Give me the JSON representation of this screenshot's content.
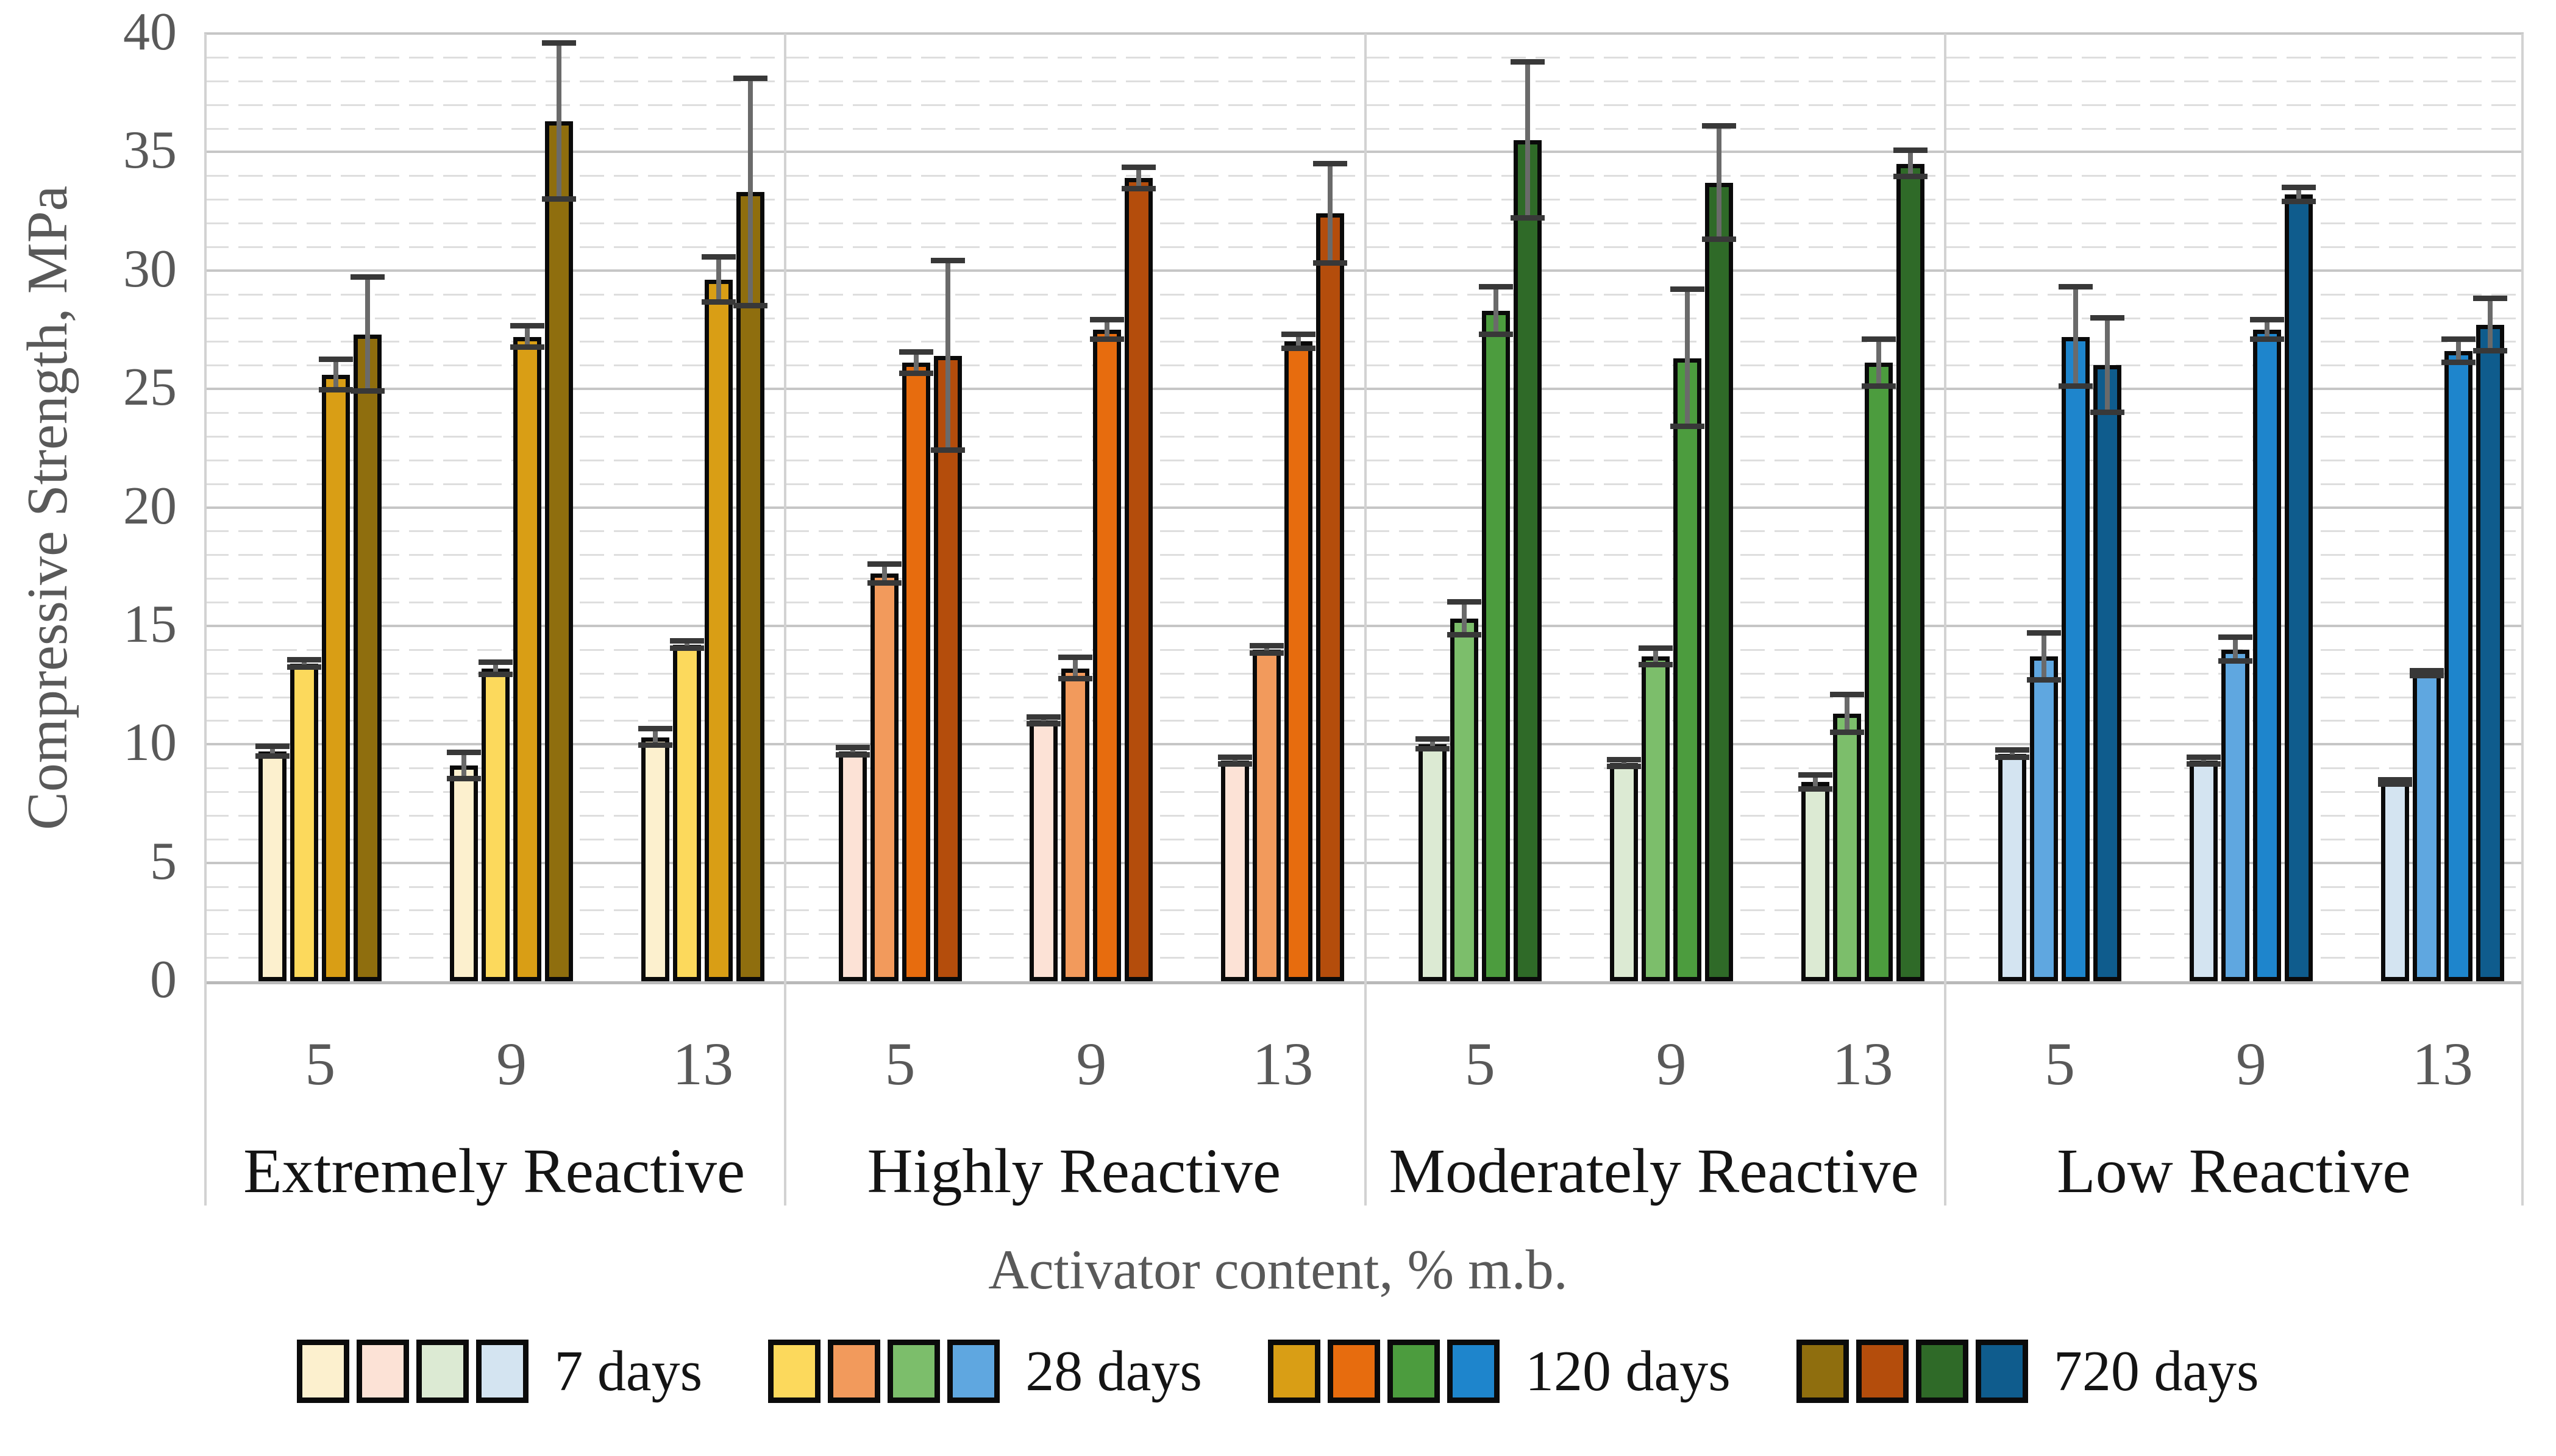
{
  "chart_data": {
    "type": "bar",
    "title": "",
    "ylabel": "Compressive Strength, MPa",
    "xlabel": "Activator content, % m.b.",
    "ylim": [
      0,
      40
    ],
    "y_major_step": 5,
    "y_minor_step": 1,
    "y_tick_labels": [
      "0",
      "5",
      "10",
      "15",
      "20",
      "25",
      "30",
      "35",
      "40"
    ],
    "x_tick_labels": [
      "5",
      "9",
      "13"
    ],
    "series_names": [
      "7 days",
      "28 days",
      "120 days",
      "720 days"
    ],
    "grid": "major and minor horizontal gridlines",
    "legend_position": "bottom",
    "groups": [
      {
        "label": "Extremely Reactive",
        "colors": [
          "#FCF0CE",
          "#FCD95C",
          "#D99E15",
          "#8F6E0E"
        ],
        "clusters": [
          {
            "x": "5",
            "values": [
              9.7,
              13.4,
              25.6,
              27.3
            ],
            "errors": [
              0.2,
              0.15,
              0.65,
              2.4
            ]
          },
          {
            "x": "9",
            "values": [
              9.1,
              13.2,
              27.2,
              36.3
            ],
            "errors": [
              0.55,
              0.25,
              0.45,
              3.3
            ]
          },
          {
            "x": "13",
            "values": [
              10.3,
              14.2,
              29.6,
              33.3
            ],
            "errors": [
              0.35,
              0.15,
              0.95,
              4.8
            ]
          }
        ]
      },
      {
        "label": "Highly Reactive",
        "colors": [
          "#FCE2D6",
          "#F29A5C",
          "#E76C0E",
          "#B44D0C"
        ],
        "clusters": [
          {
            "x": "5",
            "values": [
              9.7,
              17.2,
              26.1,
              26.4
            ],
            "errors": [
              0.15,
              0.4,
              0.45,
              4.0
            ]
          },
          {
            "x": "9",
            "values": [
              11.0,
              13.2,
              27.5,
              33.9
            ],
            "errors": [
              0.15,
              0.45,
              0.4,
              0.45
            ]
          },
          {
            "x": "13",
            "values": [
              9.3,
              14.0,
              27.0,
              32.4
            ],
            "errors": [
              0.15,
              0.15,
              0.3,
              2.1
            ]
          }
        ]
      },
      {
        "label": "Moderately Reactive",
        "colors": [
          "#DCEAD3",
          "#7CBE6B",
          "#4C9C3E",
          "#2F6A28"
        ],
        "clusters": [
          {
            "x": "5",
            "values": [
              10.0,
              15.3,
              28.3,
              35.5
            ],
            "errors": [
              0.2,
              0.7,
              1.0,
              3.3
            ]
          },
          {
            "x": "9",
            "values": [
              9.2,
              13.7,
              26.3,
              33.7
            ],
            "errors": [
              0.15,
              0.35,
              2.9,
              2.4
            ]
          },
          {
            "x": "13",
            "values": [
              8.4,
              11.3,
              26.1,
              34.5
            ],
            "errors": [
              0.3,
              0.8,
              1.0,
              0.55
            ]
          }
        ]
      },
      {
        "label": "Low Reactive",
        "colors": [
          "#D4E4F1",
          "#5FA7E0",
          "#1E85CC",
          "#0F5C8D"
        ],
        "clusters": [
          {
            "x": "5",
            "values": [
              9.6,
              13.7,
              27.2,
              26.0
            ],
            "errors": [
              0.15,
              1.0,
              2.1,
              2.0
            ]
          },
          {
            "x": "9",
            "values": [
              9.3,
              14.0,
              27.5,
              33.2
            ],
            "errors": [
              0.15,
              0.5,
              0.4,
              0.3
            ]
          },
          {
            "x": "13",
            "values": [
              8.4,
              13.0,
              26.6,
              27.7
            ],
            "errors": [
              0.1,
              0.1,
              0.5,
              1.1
            ]
          }
        ]
      }
    ],
    "legend": [
      {
        "label": "7 days",
        "colors": [
          "#FCF0CE",
          "#FCE2D6",
          "#DCEAD3",
          "#D4E4F1"
        ]
      },
      {
        "label": "28 days",
        "colors": [
          "#FCD95C",
          "#F29A5C",
          "#7CBE6B",
          "#5FA7E0"
        ]
      },
      {
        "label": "120 days",
        "colors": [
          "#D99E15",
          "#E76C0E",
          "#4C9C3E",
          "#1E85CC"
        ]
      },
      {
        "label": "720 days",
        "colors": [
          "#8F6E0E",
          "#B44D0C",
          "#2F6A28",
          "#0F5C8D"
        ]
      }
    ],
    "style": {
      "axis_text_color": "#595959",
      "category_text_color": "#141414",
      "grid_major_color": "#C6C6C6",
      "grid_minor_color": "#DEDEDE",
      "separator_color": "#D2D2D2",
      "bar_border_color": "#0A0A0A",
      "error_bar_color": "#383838",
      "background_color": "#FFFFFF"
    }
  }
}
